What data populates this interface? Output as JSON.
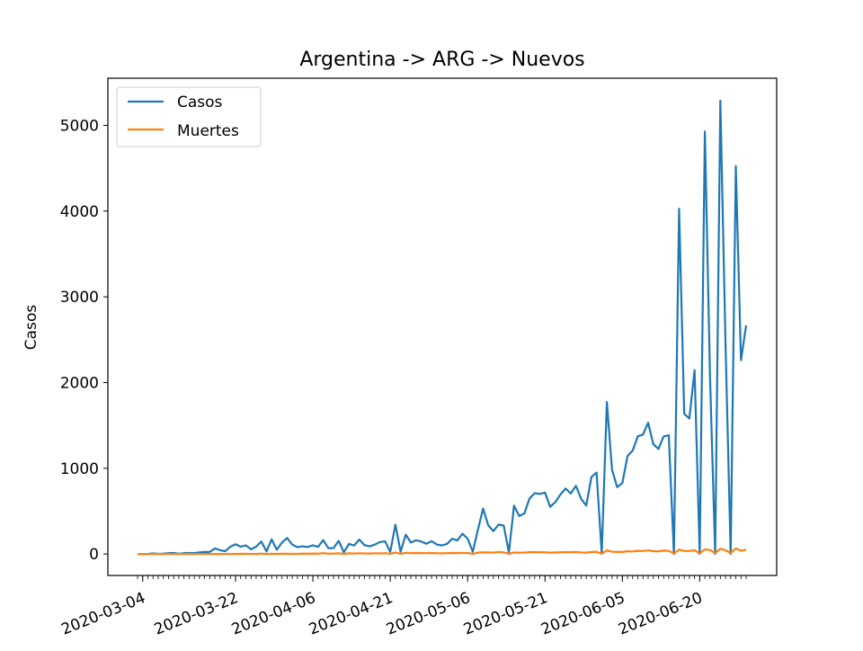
{
  "chart_data": {
    "type": "line",
    "title": "Argentina -> ARG -> Nuevos",
    "xlabel": "",
    "ylabel": "Casos",
    "x_start": "2020-03-03",
    "x_tick_labels": [
      "2020-03-04",
      "2020-03-22",
      "2020-04-06",
      "2020-04-21",
      "2020-05-06",
      "2020-05-21",
      "2020-06-05",
      "2020-06-20"
    ],
    "y_ticks": [
      0,
      1000,
      2000,
      3000,
      4000,
      5000
    ],
    "y_tick_labels": [
      "0",
      "1000",
      "2000",
      "3000",
      "4000",
      "5000"
    ],
    "ylim": [
      -250,
      5550
    ],
    "grid": false,
    "legend_position": "top-left",
    "series": [
      {
        "name": "Casos",
        "color": "#1f77b4",
        "values": [
          1,
          0,
          1,
          7,
          2,
          5,
          10,
          13,
          3,
          10,
          12,
          11,
          19,
          24,
          25,
          65,
          45,
          33,
          86,
          115,
          86,
          101,
          55,
          87,
          146,
          30,
          172,
          50,
          133,
          187,
          110,
          80,
          90,
          82,
          102,
          84,
          163,
          68,
          70,
          154,
          21,
          118,
          100,
          170,
          104,
          90,
          110,
          140,
          148,
          26,
          343,
          26,
          226,
          134,
          160,
          146,
          120,
          150,
          112,
          100,
          118,
          178,
          158,
          237,
          180,
          27,
          285,
          530,
          335,
          267,
          344,
          331,
          19,
          564,
          443,
          474,
          648,
          710,
          701,
          717,
          551,
          605,
          695,
          765,
          706,
          796,
          645,
          566,
          898,
          950,
          6,
          1773,
          983,
          780,
          828,
          1142,
          1208,
          1374,
          1393,
          1531,
          1282,
          1226,
          1371,
          1386,
          0,
          4028,
          1636,
          1581,
          2146,
          0,
          4927,
          2060,
          0,
          5290,
          2460,
          0,
          4525,
          2260,
          2667
        ]
      },
      {
        "name": "Muertes",
        "color": "#ff7f0e",
        "values": [
          0,
          0,
          0,
          1,
          0,
          0,
          1,
          0,
          0,
          0,
          1,
          0,
          1,
          1,
          0,
          2,
          0,
          1,
          2,
          1,
          3,
          2,
          1,
          2,
          5,
          1,
          3,
          1,
          3,
          3,
          2,
          2,
          4,
          3,
          6,
          4,
          10,
          4,
          5,
          8,
          2,
          8,
          6,
          9,
          7,
          6,
          9,
          7,
          10,
          3,
          18,
          3,
          14,
          10,
          12,
          11,
          10,
          12,
          9,
          8,
          10,
          12,
          11,
          14,
          13,
          2,
          16,
          20,
          18,
          16,
          24,
          19,
          2,
          18,
          16,
          17,
          21,
          23,
          21,
          20,
          15,
          19,
          20,
          22,
          21,
          24,
          18,
          16,
          24,
          25,
          4,
          42,
          27,
          25,
          24,
          33,
          30,
          37,
          35,
          43,
          33,
          31,
          40,
          38,
          6,
          52,
          35,
          36,
          45,
          8,
          55,
          47,
          10,
          62,
          44,
          12,
          66,
          38,
          52
        ]
      }
    ]
  }
}
